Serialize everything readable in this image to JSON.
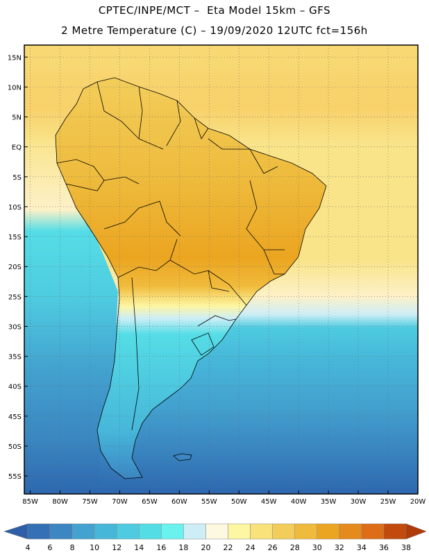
{
  "header": {
    "line1": "CPTEC/INPE/MCT –  Eta Model 15km – GFS",
    "line2": "2 Metre Temperature (C) – 19/09/2020 12UTC fct=156h"
  },
  "map": {
    "lat_labels": [
      "15N",
      "10N",
      "5N",
      "EQ",
      "5S",
      "10S",
      "15S",
      "20S",
      "25S",
      "30S",
      "35S",
      "40S",
      "45S",
      "50S",
      "55S"
    ],
    "lon_labels": [
      "85W",
      "80W",
      "75W",
      "70W",
      "65W",
      "60W",
      "55W",
      "50W",
      "45W",
      "40W",
      "35W",
      "30W",
      "25W",
      "20W"
    ],
    "lat_range": [
      17,
      -58
    ],
    "lon_range": [
      -86,
      -20
    ]
  },
  "colorbar": {
    "labels": [
      "4",
      "6",
      "8",
      "10",
      "12",
      "14",
      "16",
      "18",
      "20",
      "22",
      "24",
      "26",
      "28",
      "30",
      "32",
      "34",
      "36",
      "38"
    ],
    "colors": [
      "#2d5fa8",
      "#3470b5",
      "#3b86c3",
      "#43a2cf",
      "#47b7d9",
      "#4ecbe0",
      "#55dde6",
      "#6af2ee",
      "#cdeef6",
      "#fdf8e0",
      "#fdf6a3",
      "#f9e27a",
      "#f3cd5a",
      "#eebb3d",
      "#eba520",
      "#e58a1c",
      "#dd6d16",
      "#c24a0c",
      "#b13a09"
    ]
  },
  "palette": {
    "sea_warm": "#f8d873",
    "sea_mid": "#f9e48a",
    "sea_pale": "#fdf1c8",
    "sea_cyan": "#4ecbe0",
    "sea_teal": "#45b4d4",
    "sea_blue": "#3a86c0",
    "sea_deep": "#2d67ae",
    "land_hot": "#eba520",
    "land_warm": "#f0bb3c",
    "land_mild": "#f6d36a",
    "land_cool": "#55dde6",
    "land_cold": "#43a2cf",
    "andes_cold": "#3b86c3"
  }
}
